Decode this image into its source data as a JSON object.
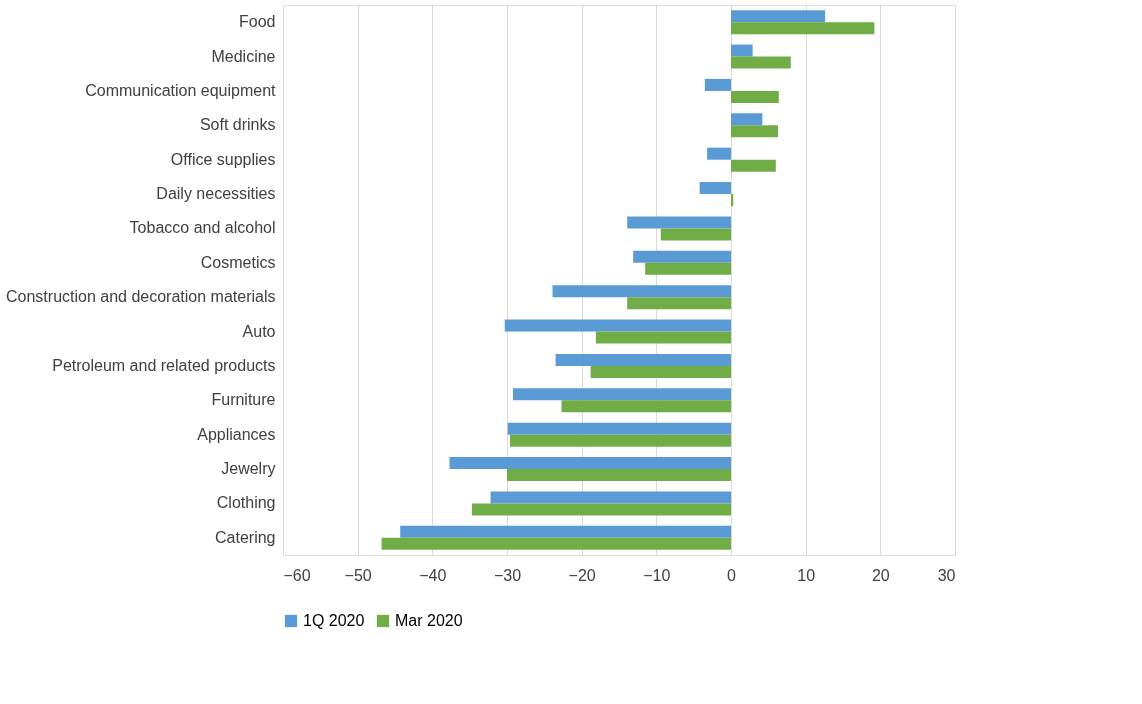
{
  "chart_data": {
    "type": "bar",
    "orientation": "horizontal",
    "categories": [
      "Food",
      "Medicine",
      "Communication equipment",
      "Soft drinks",
      "Office supplies",
      "Daily necessities",
      "Tobacco and alcohol",
      "Cosmetics",
      "Construction and decoration materials",
      "Auto",
      "Petroleum and related products",
      "Furniture",
      "Appliances",
      "Jewelry",
      "Clothing",
      "Catering"
    ],
    "series": [
      {
        "name": "1Q 2020",
        "color": "#5b9bd5",
        "values": [
          12.6,
          2.9,
          -3.5,
          4.2,
          -3.2,
          -4.2,
          -13.9,
          -13.1,
          -23.9,
          -30.3,
          -23.5,
          -29.2,
          -29.9,
          -37.7,
          -32.2,
          -44.3
        ]
      },
      {
        "name": "Mar 2020",
        "color": "#70ad47",
        "values": [
          19.2,
          8.0,
          6.4,
          6.3,
          6.0,
          0.3,
          -9.4,
          -11.5,
          -13.9,
          -18.1,
          -18.8,
          -22.7,
          -29.6,
          -30.0,
          -34.7,
          -46.8
        ]
      }
    ],
    "xlim": [
      -60,
      30
    ],
    "xticks": [
      -60,
      -50,
      -40,
      -30,
      -20,
      -10,
      0,
      10,
      20,
      30
    ],
    "grid": "x",
    "legend": "bottom"
  }
}
